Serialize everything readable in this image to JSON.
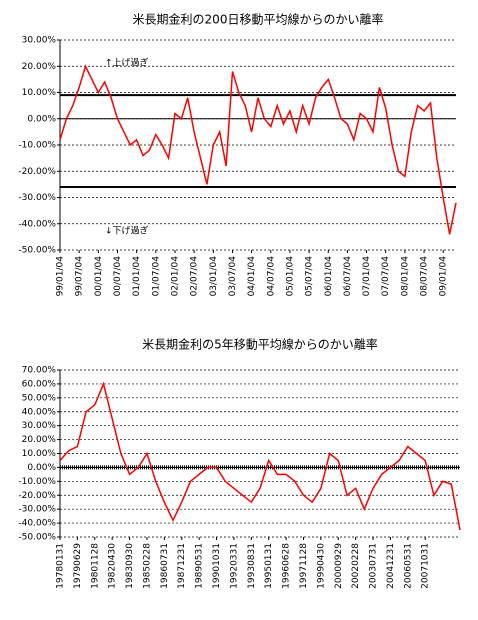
{
  "chart_data": [
    {
      "type": "line",
      "title": "米長期金利の200日移動平均線からのかい離率",
      "annotations": [
        "↑上げ過ぎ",
        "↓下げ過ぎ"
      ],
      "categories": [
        "99/01/04",
        null,
        null,
        "99/07/04",
        null,
        null,
        "00/01/04",
        null,
        null,
        "00/07/04",
        null,
        null,
        "01/01/04",
        null,
        null,
        "01/07/04",
        null,
        null,
        "02/01/04",
        null,
        null,
        "02/07/04",
        null,
        null,
        "03/01/04",
        null,
        null,
        "03/07/04",
        null,
        null,
        "04/01/04",
        null,
        null,
        "04/07/04",
        null,
        null,
        "05/01/04",
        null,
        null,
        "05/07/04",
        null,
        null,
        "06/01/04",
        null,
        null,
        "06/07/04",
        null,
        null,
        "07/01/04",
        null,
        null,
        "07/07/04",
        null,
        null,
        "08/01/04",
        null,
        null,
        "08/07/04",
        null,
        null,
        "09/01/04",
        null,
        null
      ],
      "series": [
        {
          "color": "#ff0000",
          "values": [
            -8,
            0,
            5,
            12,
            20,
            15,
            10,
            14,
            8,
            0,
            -5,
            -10,
            -8,
            -14,
            -12,
            -6,
            -10,
            -15,
            2,
            0,
            8,
            -5,
            -15,
            -25,
            -10,
            -5,
            -18,
            18,
            10,
            5,
            -5,
            8,
            0,
            -3,
            5,
            -2,
            3,
            -5,
            5,
            -2,
            8,
            12,
            15,
            8,
            0,
            -2,
            -8,
            2,
            0,
            -5,
            12,
            4,
            -10,
            -20,
            -22,
            -5,
            5,
            3,
            6,
            -15,
            -30,
            -44,
            -32
          ]
        }
      ],
      "hlines": [
        9,
        -26
      ],
      "ylim": [
        -50,
        30
      ],
      "yticks": [
        {
          "value": -50,
          "label": "-50.00%"
        },
        {
          "value": -40,
          "label": "-40.00%"
        },
        {
          "value": -30,
          "label": "-30.00%"
        },
        {
          "value": -20,
          "label": "-20.00%"
        },
        {
          "value": -10,
          "label": "-10.00%"
        },
        {
          "value": 0,
          "label": "0.00%"
        },
        {
          "value": 10,
          "label": "10.00%"
        },
        {
          "value": 20,
          "label": "20.00%"
        },
        {
          "value": 30,
          "label": "30.00%"
        }
      ],
      "grid": true
    },
    {
      "type": "line",
      "title": "米長期金利の5年移動平均線からのかい離率",
      "categories": [
        "19780131",
        null,
        "19790629",
        null,
        "19801128",
        null,
        "19820430",
        null,
        "19830930",
        null,
        "19850228",
        null,
        "19860731",
        null,
        "19871231",
        null,
        "19890531",
        null,
        "19901031",
        null,
        "19920331",
        null,
        "19930831",
        null,
        "19950131",
        null,
        "19960628",
        null,
        "19971128",
        null,
        "19990430",
        null,
        "20000929",
        null,
        "20020228",
        null,
        "20030731",
        null,
        "20041231",
        null,
        "20060531",
        null,
        "20071031",
        null,
        null,
        null,
        null
      ],
      "series": [
        {
          "color": "#ff0000",
          "values": [
            5,
            12,
            15,
            40,
            45,
            60,
            35,
            10,
            -5,
            0,
            10,
            -10,
            -25,
            -38,
            -25,
            -10,
            -5,
            0,
            0,
            -10,
            -15,
            -20,
            -25,
            -15,
            5,
            -5,
            -5,
            -10,
            -20,
            -25,
            -15,
            10,
            5,
            -20,
            -15,
            -30,
            -15,
            -5,
            0,
            5,
            15,
            10,
            5,
            -20,
            -10,
            -12,
            -45
          ]
        }
      ],
      "hlines": [
        0
      ],
      "ylim": [
        -50,
        70
      ],
      "yticks": [
        {
          "value": -50,
          "label": "-50.00%"
        },
        {
          "value": -40,
          "label": "-40.00%"
        },
        {
          "value": -30,
          "label": "-30.00%"
        },
        {
          "value": -20,
          "label": "-20.00%"
        },
        {
          "value": -10,
          "label": "-10.00%"
        },
        {
          "value": 0,
          "label": "0.00%"
        },
        {
          "value": 10,
          "label": "10.00%"
        },
        {
          "value": 20,
          "label": "20.00%"
        },
        {
          "value": 30,
          "label": "30.00%"
        },
        {
          "value": 40,
          "label": "40.00%"
        },
        {
          "value": 50,
          "label": "50.00%"
        },
        {
          "value": 60,
          "label": "60.00%"
        },
        {
          "value": 70,
          "label": "70.00%"
        }
      ],
      "grid": true
    }
  ]
}
